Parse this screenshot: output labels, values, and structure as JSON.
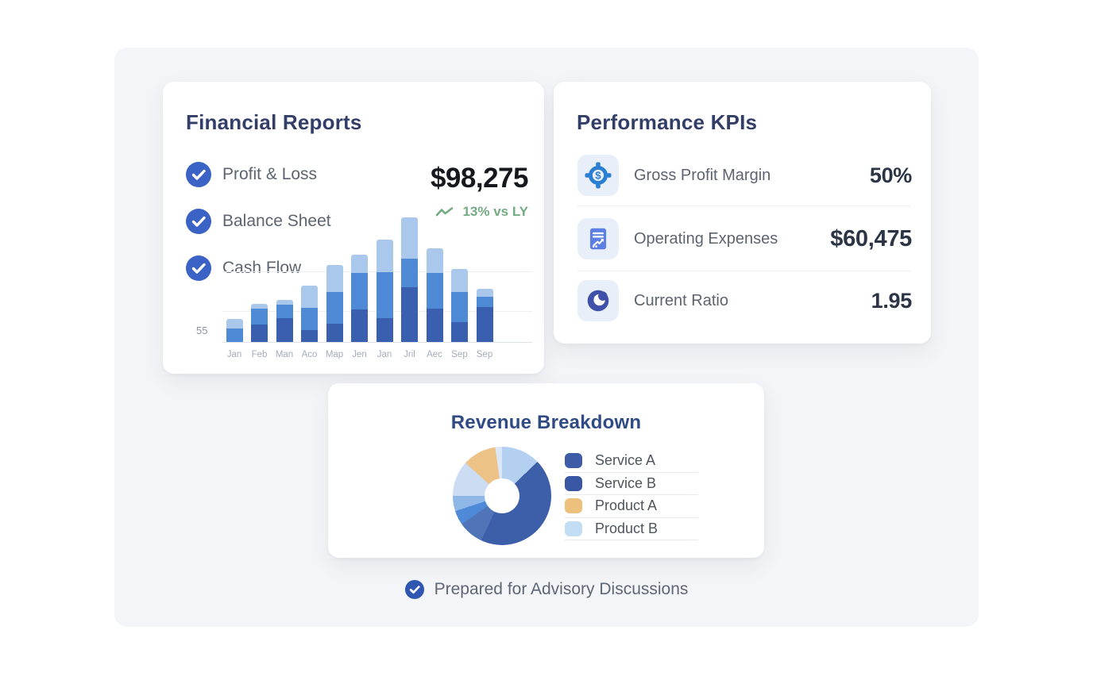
{
  "colors": {
    "page_background": "#ffffff",
    "panel_background": "#f4f5f8",
    "card_background": "#ffffff",
    "accent_blue": "#3b63c5",
    "title_navy": "#333e68",
    "revenue_title_blue": "#2f4a85",
    "body_text_gray": "#5d6470",
    "value_dark": "#15181d",
    "trend_green": "#74ab83",
    "axis_text_gray": "#a3adbd"
  },
  "financial_reports": {
    "title": "Financial Reports",
    "checklist": [
      {
        "label": "Profit & Loss",
        "checked": true
      },
      {
        "label": "Balance Sheet",
        "checked": true
      },
      {
        "label": "Cash Flow",
        "checked": true
      }
    ],
    "total_value": "$98,275",
    "trend_label": "13% vs LY",
    "y_axis_tick": "55"
  },
  "performance_kpis": {
    "title": "Performance KPIs",
    "rows": [
      {
        "icon": "dollar-target-icon",
        "label": "Gross Profit Margin",
        "value": "50%"
      },
      {
        "icon": "expenses-document-icon",
        "label": "Operating Expenses",
        "value": "$60,475"
      },
      {
        "icon": "ratio-pie-icon",
        "label": "Current Ratio",
        "value": "1.95"
      }
    ]
  },
  "revenue_breakdown": {
    "title": "Revenue Breakdown",
    "legend": [
      {
        "label": "Service A",
        "color": "#3d5ba7"
      },
      {
        "label": "Service B",
        "color": "#3a57a5"
      },
      {
        "label": "Product A",
        "color": "#edc07c"
      },
      {
        "label": "Product B",
        "color": "#c3ddf5"
      }
    ]
  },
  "footer": {
    "label": "Prepared for Advisory Discussions"
  },
  "chart_data": [
    {
      "type": "bar",
      "stacked": true,
      "title": "",
      "xlabel": "",
      "ylabel": "",
      "y_tick_labels": [
        "55"
      ],
      "grid": true,
      "annotation_value": "$98,275",
      "annotation_trend": "13% vs LY",
      "categories": [
        "Jan",
        "Feb",
        "Man",
        "Aco",
        "Map",
        "Jen",
        "Jan",
        "Jril",
        "Aec",
        "Sep",
        "Sep"
      ],
      "series": [
        {
          "name": "dark-blue-segment",
          "color": "#3a5fae",
          "values": [
            0,
            22,
            30,
            15,
            23,
            41,
            30,
            69,
            42,
            25,
            44
          ]
        },
        {
          "name": "mid-blue-segment",
          "color": "#4e8ad6",
          "values": [
            17,
            20,
            17,
            28,
            40,
            46,
            58,
            36,
            45,
            38,
            13
          ]
        },
        {
          "name": "light-blue-segment",
          "color": "#a9c8ec",
          "values": [
            12,
            6,
            6,
            28,
            34,
            23,
            41,
            52,
            31,
            29,
            10
          ]
        }
      ],
      "totals": [
        29,
        48,
        53,
        71,
        97,
        110,
        129,
        157,
        118,
        92,
        67
      ],
      "units": "relative-pixel-height"
    },
    {
      "type": "pie",
      "title": "Revenue Breakdown",
      "donut": true,
      "legend_position": "right",
      "labels": [
        "Service A",
        "Service B",
        "Product A",
        "Product B"
      ],
      "segments": [
        {
          "label": "Product B",
          "color": "#b3d0f1",
          "start": 0,
          "end": 46
        },
        {
          "label": "Service A",
          "color": "#3d5ea9",
          "start": 46,
          "end": 205
        },
        {
          "label": "Service B",
          "color": "#4f74b8",
          "start": 205,
          "end": 235
        },
        {
          "label": "Service B",
          "color": "#4e8ad8",
          "start": 235,
          "end": 252
        },
        {
          "label": "Product B",
          "color": "#8fb8e8",
          "start": 252,
          "end": 270
        },
        {
          "label": "Product B",
          "color": "#ccdcf2",
          "start": 270,
          "end": 312
        },
        {
          "label": "Product A",
          "color": "#edc287",
          "start": 312,
          "end": 352
        },
        {
          "label": "Product B",
          "color": "#dbe7f6",
          "start": 352,
          "end": 360
        }
      ]
    }
  ]
}
